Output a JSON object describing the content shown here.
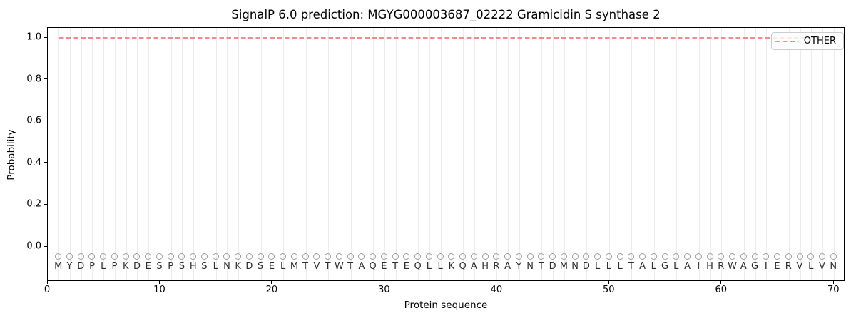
{
  "page": {
    "title": "SignalP 6.0 prediction: MGYG000003687_02222 Gramicidin S synthase 2"
  },
  "chart_data": {
    "type": "line",
    "title": "SignalP 6.0 prediction: MGYG000003687_02222 Gramicidin S synthase 2",
    "xlabel": "Protein sequence",
    "ylabel": "Probability",
    "x_ticks": [
      0,
      10,
      20,
      30,
      40,
      50,
      60,
      70
    ],
    "y_tick_labels": [
      "0.0",
      "0.2",
      "0.4",
      "0.6",
      "0.8",
      "1.0"
    ],
    "y_tick_values": [
      0.0,
      0.2,
      0.4,
      0.6,
      0.8,
      1.0
    ],
    "xlim": [
      0,
      71
    ],
    "ylim": [
      -0.167,
      1.048
    ],
    "grid": {
      "vertical_per_residue": true,
      "horizontal": false
    },
    "sequence": "MYDPLPKDESPSHSLNKDSELMTVTWTAQETEQLLKQAHRAYNTDMNDLLLTALGLAIHRWAGIERVLVN",
    "sequence_length": 70,
    "series": [
      {
        "name": "OTHER",
        "style": "dashed",
        "value": 1.0,
        "x_start": 1,
        "x_end": 70
      }
    ],
    "residue_markers": {
      "shape": "circle-outline",
      "y": -0.05
    },
    "residue_letters_y": -0.1,
    "legend": {
      "location": "upper right",
      "entries": [
        {
          "label": "OTHER",
          "style": "dashed"
        }
      ]
    }
  },
  "colors": {
    "other_line": "#f48a8a",
    "grid": "#ececec",
    "marker": "#9e9e9e",
    "letter": "#2e2e2e",
    "spine": "#000000",
    "legend_border": "#cccccc"
  }
}
